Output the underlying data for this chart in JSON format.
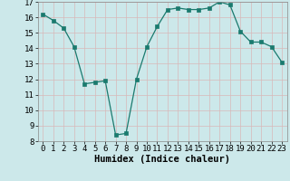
{
  "x": [
    0,
    1,
    2,
    3,
    4,
    5,
    6,
    7,
    8,
    9,
    10,
    11,
    12,
    13,
    14,
    15,
    16,
    17,
    18,
    19,
    20,
    21,
    22,
    23
  ],
  "y": [
    16.2,
    15.8,
    15.3,
    14.1,
    11.7,
    11.8,
    11.9,
    8.4,
    8.5,
    12.0,
    14.1,
    15.4,
    16.5,
    16.6,
    16.5,
    16.5,
    16.6,
    17.0,
    16.8,
    15.1,
    14.4,
    14.4,
    14.1,
    13.1
  ],
  "line_color": "#1a7a6e",
  "marker": "s",
  "marker_size": 2.5,
  "bg_color": "#cce8ea",
  "grid_color": "#b8d8da",
  "xlabel": "Humidex (Indice chaleur)",
  "ylim": [
    8,
    17
  ],
  "xlim": [
    -0.5,
    23.5
  ],
  "yticks": [
    8,
    9,
    10,
    11,
    12,
    13,
    14,
    15,
    16,
    17
  ],
  "xticks": [
    0,
    1,
    2,
    3,
    4,
    5,
    6,
    7,
    8,
    9,
    10,
    11,
    12,
    13,
    14,
    15,
    16,
    17,
    18,
    19,
    20,
    21,
    22,
    23
  ],
  "tick_fontsize": 6.5,
  "xlabel_fontsize": 7.5,
  "spine_color": "#888888",
  "grid_major_color": "#c8d8d8",
  "grid_minor_color": "#dce8e8"
}
